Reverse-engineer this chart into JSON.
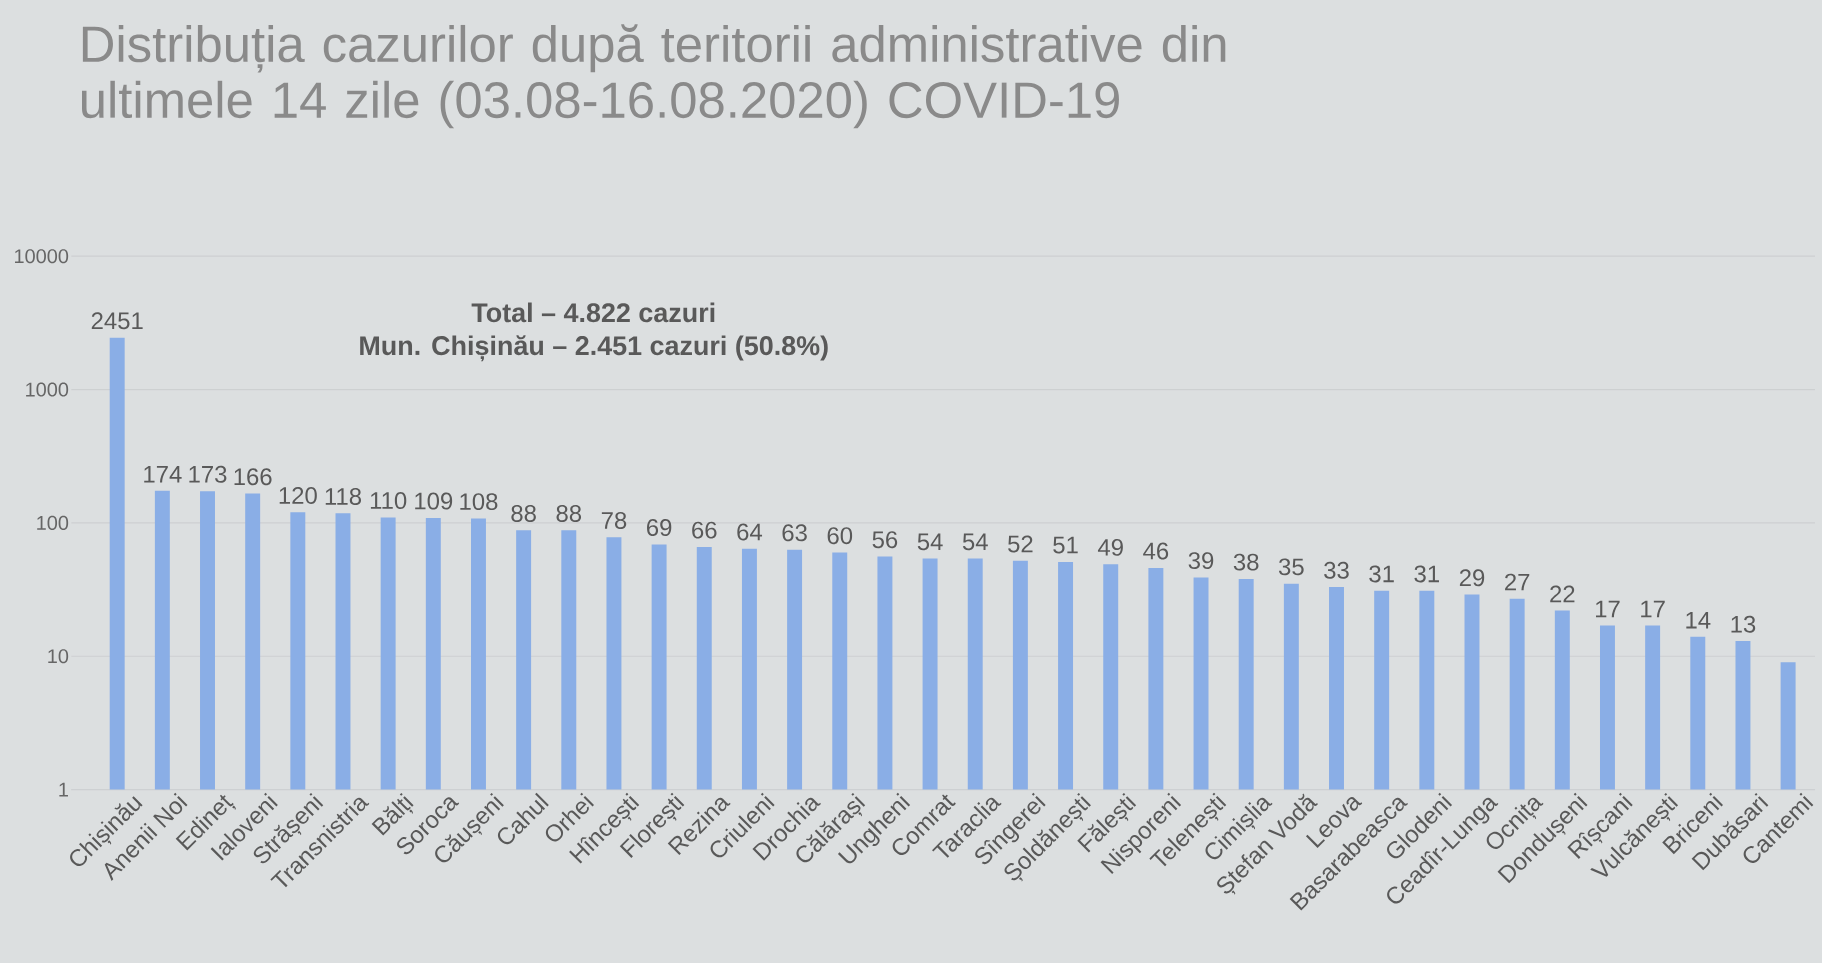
{
  "chart_data": {
    "type": "bar",
    "title": "Distribuția cazurilor după teritorii administrative din ultimele 14 zile (03.08-16.08.2020) COVID-19",
    "annotations": [
      "Total – 4.822 cazuri",
      "Mun. Chișinău – 2.451 cazuri (50.8%)"
    ],
    "categories": [
      "Chișinău",
      "Anenii Noi",
      "Edineț",
      "Ialoveni",
      "Strășeni",
      "Transnistria",
      "Bălți",
      "Soroca",
      "Căușeni",
      "Cahul",
      "Orhei",
      "Hîncești",
      "Florești",
      "Rezina",
      "Criuleni",
      "Drochia",
      "Călărași",
      "Ungheni",
      "Comrat",
      "Taraclia",
      "Sîngerei",
      "Șoldănești",
      "Fălești",
      "Nisporeni",
      "Telenești",
      "Cimișlia",
      "Ștefan Vodă",
      "Leova",
      "Basarabeasca",
      "Glodeni",
      "Ceadîr-Lunga",
      "Ocnița",
      "Dondușeni",
      "Rîșcani",
      "Vulcănești",
      "Briceni",
      "Dubăsari",
      "Cantemi"
    ],
    "values": [
      2451,
      174,
      173,
      166,
      120,
      118,
      110,
      109,
      108,
      88,
      88,
      78,
      69,
      66,
      64,
      63,
      60,
      56,
      54,
      54,
      52,
      51,
      49,
      46,
      39,
      38,
      35,
      33,
      31,
      31,
      29,
      27,
      22,
      17,
      17,
      14,
      13,
      9
    ],
    "value_labels": [
      "2451",
      "174",
      "173",
      "166",
      "120",
      "118",
      "110",
      "109",
      "108",
      "88",
      "88",
      "78",
      "69",
      "66",
      "64",
      "63",
      "60",
      "56",
      "54",
      "54",
      "52",
      "51",
      "49",
      "46",
      "39",
      "38",
      "35",
      "33",
      "31",
      "31",
      "29",
      "27",
      "22",
      "17",
      "17",
      "14",
      "13",
      null
    ],
    "color": "#8aaee6",
    "log": true,
    "ylim": [
      1,
      10000
    ],
    "yticks": [
      1,
      10,
      100,
      1000,
      10000
    ],
    "grid": "y"
  }
}
